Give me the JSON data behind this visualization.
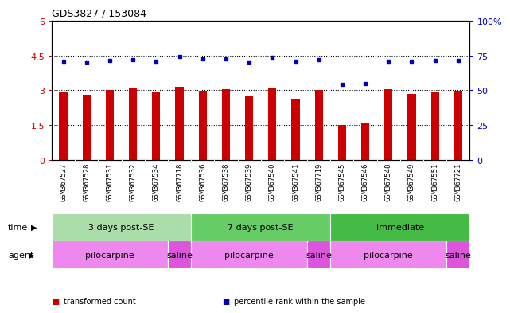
{
  "title": "GDS3827 / 153084",
  "samples": [
    "GSM367527",
    "GSM367528",
    "GSM367531",
    "GSM367532",
    "GSM367534",
    "GSM367718",
    "GSM367536",
    "GSM367538",
    "GSM367539",
    "GSM367540",
    "GSM367541",
    "GSM367719",
    "GSM367545",
    "GSM367546",
    "GSM367548",
    "GSM367549",
    "GSM367551",
    "GSM367721"
  ],
  "bar_values": [
    2.9,
    2.8,
    3.0,
    3.1,
    2.93,
    3.15,
    2.98,
    3.05,
    2.72,
    3.1,
    2.62,
    3.0,
    1.5,
    1.55,
    3.05,
    2.83,
    2.93,
    2.98
  ],
  "dot_values_pct": [
    71,
    70,
    71.5,
    72,
    71,
    74,
    72.5,
    72.5,
    70,
    73.5,
    71,
    72,
    54,
    55,
    71,
    70.5,
    71.5,
    71.5
  ],
  "bar_color": "#cc0000",
  "dot_color": "#0000bb",
  "ylim_left": [
    0,
    6
  ],
  "ylim_right": [
    0,
    100
  ],
  "yticks_left": [
    0,
    1.5,
    3.0,
    4.5,
    6.0
  ],
  "yticks_left_labels": [
    "0",
    "1.5",
    "3",
    "4.5",
    "6"
  ],
  "yticks_right": [
    0,
    25,
    50,
    75,
    100
  ],
  "yticks_right_labels": [
    "0",
    "25",
    "50",
    "75",
    "100%"
  ],
  "hlines": [
    1.5,
    3.0,
    4.5
  ],
  "time_groups": [
    {
      "label": "3 days post-SE",
      "start": 0,
      "end": 6,
      "color": "#aaddaa"
    },
    {
      "label": "7 days post-SE",
      "start": 6,
      "end": 12,
      "color": "#66cc66"
    },
    {
      "label": "immediate",
      "start": 12,
      "end": 18,
      "color": "#44bb44"
    }
  ],
  "agent_groups": [
    {
      "label": "pilocarpine",
      "start": 0,
      "end": 5,
      "color": "#ee88ee"
    },
    {
      "label": "saline",
      "start": 5,
      "end": 6,
      "color": "#dd55dd"
    },
    {
      "label": "pilocarpine",
      "start": 6,
      "end": 11,
      "color": "#ee88ee"
    },
    {
      "label": "saline",
      "start": 11,
      "end": 12,
      "color": "#dd55dd"
    },
    {
      "label": "pilocarpine",
      "start": 12,
      "end": 17,
      "color": "#ee88ee"
    },
    {
      "label": "saline",
      "start": 17,
      "end": 18,
      "color": "#dd55dd"
    }
  ],
  "legend_items": [
    {
      "label": "transformed count",
      "color": "#cc0000"
    },
    {
      "label": "percentile rank within the sample",
      "color": "#0000bb"
    }
  ],
  "time_label": "time",
  "agent_label": "agent",
  "xtick_bg": "#d8d8d8",
  "bg_color": "#ffffff",
  "tick_label_size": 6.5,
  "bar_width": 0.35
}
